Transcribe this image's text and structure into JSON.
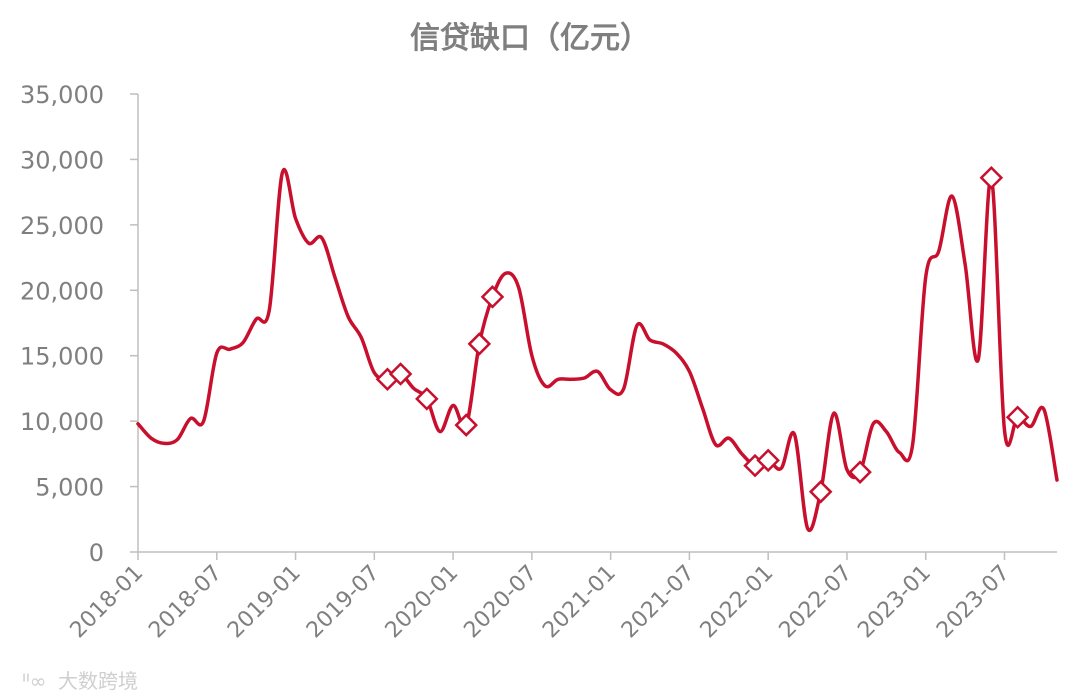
{
  "chart_data": {
    "type": "line",
    "title": "信贷缺口（亿元）",
    "xlabel": "",
    "ylabel": "",
    "ylim": [
      0,
      35000
    ],
    "y_ticks": [
      0,
      5000,
      10000,
      15000,
      20000,
      25000,
      30000,
      35000
    ],
    "y_tick_labels": [
      "0",
      "5,000",
      "10,000",
      "15,000",
      "20,000",
      "25,000",
      "30,000",
      "35,000"
    ],
    "x_tick_labels": [
      "2018-01",
      "2018-07",
      "2019-01",
      "2019-07",
      "2020-01",
      "2020-07",
      "2021-01",
      "2021-07",
      "2022-01",
      "2022-07",
      "2023-01",
      "2023-07"
    ],
    "grid": false,
    "legend": "none",
    "color": "#c8102e",
    "series": [
      {
        "name": "",
        "x": [
          "2018-01",
          "2018-02",
          "2018-03",
          "2018-04",
          "2018-05",
          "2018-06",
          "2018-07",
          "2018-08",
          "2018-09",
          "2018-10",
          "2018-11",
          "2018-12",
          "2019-01",
          "2019-02",
          "2019-03",
          "2019-04",
          "2019-05",
          "2019-06",
          "2019-07",
          "2019-08",
          "2019-09",
          "2019-10",
          "2019-11",
          "2019-12",
          "2020-01",
          "2020-02",
          "2020-03",
          "2020-04",
          "2020-05",
          "2020-06",
          "2020-07",
          "2020-08",
          "2020-09",
          "2020-10",
          "2020-11",
          "2020-12",
          "2021-01",
          "2021-02",
          "2021-03",
          "2021-04",
          "2021-05",
          "2021-06",
          "2021-07",
          "2021-08",
          "2021-09",
          "2021-10",
          "2021-11",
          "2021-12",
          "2022-01",
          "2022-02",
          "2022-03",
          "2022-04",
          "2022-05",
          "2022-06",
          "2022-07",
          "2022-08",
          "2022-09",
          "2022-10",
          "2022-11",
          "2022-12",
          "2023-01",
          "2023-02",
          "2023-03",
          "2023-04",
          "2023-05",
          "2023-06",
          "2023-07",
          "2023-08",
          "2023-09",
          "2023-10",
          "2023-11"
        ],
        "values": [
          9800,
          8700,
          8300,
          8600,
          10200,
          10000,
          15200,
          15500,
          16000,
          17800,
          18500,
          29000,
          25500,
          23600,
          24000,
          21000,
          18000,
          16400,
          13700,
          13200,
          13600,
          12500,
          11700,
          9200,
          11200,
          9700,
          15900,
          19500,
          21300,
          20200,
          15000,
          12700,
          13200,
          13200,
          13300,
          13800,
          12400,
          12500,
          17300,
          16200,
          15900,
          15200,
          13800,
          11000,
          8200,
          8700,
          7500,
          6600,
          7000,
          6400,
          9000,
          1800,
          4600,
          10600,
          6300,
          6100,
          9800,
          9200,
          7600,
          8200,
          21000,
          23000,
          27200,
          22000,
          14700,
          28600,
          9300,
          10300,
          9600,
          10900,
          5500
        ],
        "markers": [
          {
            "x": "2019-08",
            "y": 13200
          },
          {
            "x": "2019-09",
            "y": 13600
          },
          {
            "x": "2019-11",
            "y": 11700
          },
          {
            "x": "2020-02",
            "y": 9700
          },
          {
            "x": "2020-03",
            "y": 15900
          },
          {
            "x": "2020-04",
            "y": 19500
          },
          {
            "x": "2021-12",
            "y": 6600
          },
          {
            "x": "2022-01",
            "y": 7000
          },
          {
            "x": "2022-05",
            "y": 4600
          },
          {
            "x": "2022-08",
            "y": 6100
          },
          {
            "x": "2023-06",
            "y": 28600
          },
          {
            "x": "2023-08",
            "y": 10300
          }
        ]
      }
    ]
  },
  "watermark": "大数跨境"
}
